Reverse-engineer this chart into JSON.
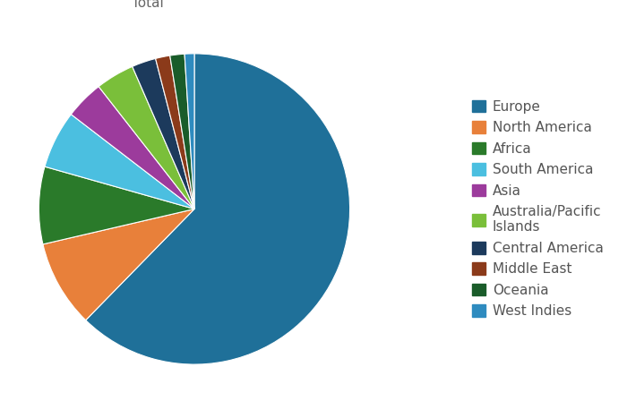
{
  "title": "Total",
  "legend_labels": [
    "Europe",
    "North America",
    "Africa",
    "South America",
    "Asia",
    "Australia/Pacific\nIslands",
    "Central America",
    "Middle East",
    "Oceania",
    "West Indies"
  ],
  "values": [
    62,
    9,
    8,
    6,
    4,
    4,
    2.5,
    1.5,
    1.5,
    1
  ],
  "colors_ordered": [
    "#1f7099",
    "#e8803a",
    "#2a7a2a",
    "#4bbfe0",
    "#9c3b9c",
    "#7abf3a",
    "#1c3a5c",
    "#8b3a1a",
    "#1a5c2a",
    "#2e8bbf"
  ],
  "wedge_edge_color": "white",
  "background_color": "#ffffff",
  "title_fontsize": 11,
  "legend_fontsize": 11
}
